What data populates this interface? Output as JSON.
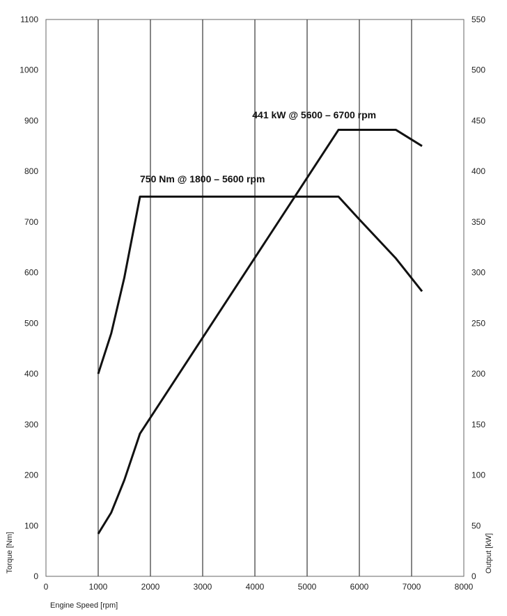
{
  "chart_data": {
    "type": "line",
    "xlabel": "Engine Speed [rpm]",
    "ylabel": "Torque [Nm]",
    "y2label": "Output [kW]",
    "xlim": [
      0,
      8000
    ],
    "ylim": [
      0,
      1100
    ],
    "y2lim": [
      0,
      550
    ],
    "x_ticks": [
      "0",
      "1000",
      "2000",
      "3000",
      "4000",
      "5000",
      "6000",
      "7000",
      "8000"
    ],
    "y_ticks": [
      "0",
      "100",
      "200",
      "300",
      "400",
      "500",
      "600",
      "700",
      "800",
      "900",
      "1000",
      "1100"
    ],
    "y2_ticks": [
      "0",
      "50",
      "100",
      "150",
      "200",
      "250",
      "300",
      "350",
      "400",
      "450",
      "500",
      "550"
    ],
    "grid": "vertical",
    "series": [
      {
        "axis": "left",
        "x": [
          1000,
          1250,
          1500,
          1800,
          5600,
          6000,
          6700,
          7200
        ],
        "y": [
          400,
          480,
          590,
          750,
          750,
          705,
          628,
          563
        ]
      },
      {
        "axis": "right",
        "x": [
          1000,
          1250,
          1500,
          1800,
          5600,
          6700,
          7200
        ],
        "y": [
          42,
          63,
          95,
          141,
          441,
          441,
          425
        ]
      }
    ],
    "annotations": [
      {
        "text": "750 Nm @ 1800 – 5600 rpm",
        "x": 1800,
        "y": 778,
        "axis": "left"
      },
      {
        "text": "441 kW @ 5600 – 6700 rpm",
        "x": 3950,
        "y": 905,
        "axis": "left"
      }
    ]
  }
}
